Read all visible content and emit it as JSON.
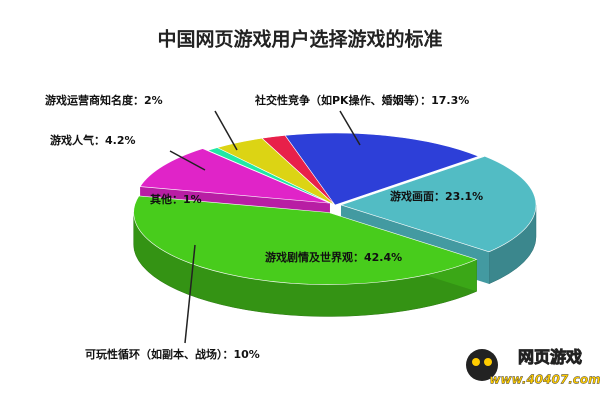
{
  "chart_data": {
    "type": "pie3d",
    "title": "中国网页游戏用户选择游戏的标准",
    "values": [
      2,
      17.3,
      23.1,
      42.4,
      10,
      1,
      4.2
    ],
    "value_labels": [
      "游戏运营商知名度：2%",
      "社交性竞争（如PK操作、婚姻等）：17.3%",
      "游戏画面：23.1%",
      "游戏剧情及世界观：42.4%",
      "可玩性循环（如副本、战场）：10%",
      "其他：1%",
      "游戏人气：4.2%"
    ],
    "colors": [
      "#e8204a",
      "#2d3fd8",
      "#52bcc4",
      "#48cc1c",
      "#e024c8",
      "#22e8a4",
      "#dcd414"
    ]
  },
  "watermark": {
    "title": "网页游戏",
    "url": "www.40407.com"
  }
}
